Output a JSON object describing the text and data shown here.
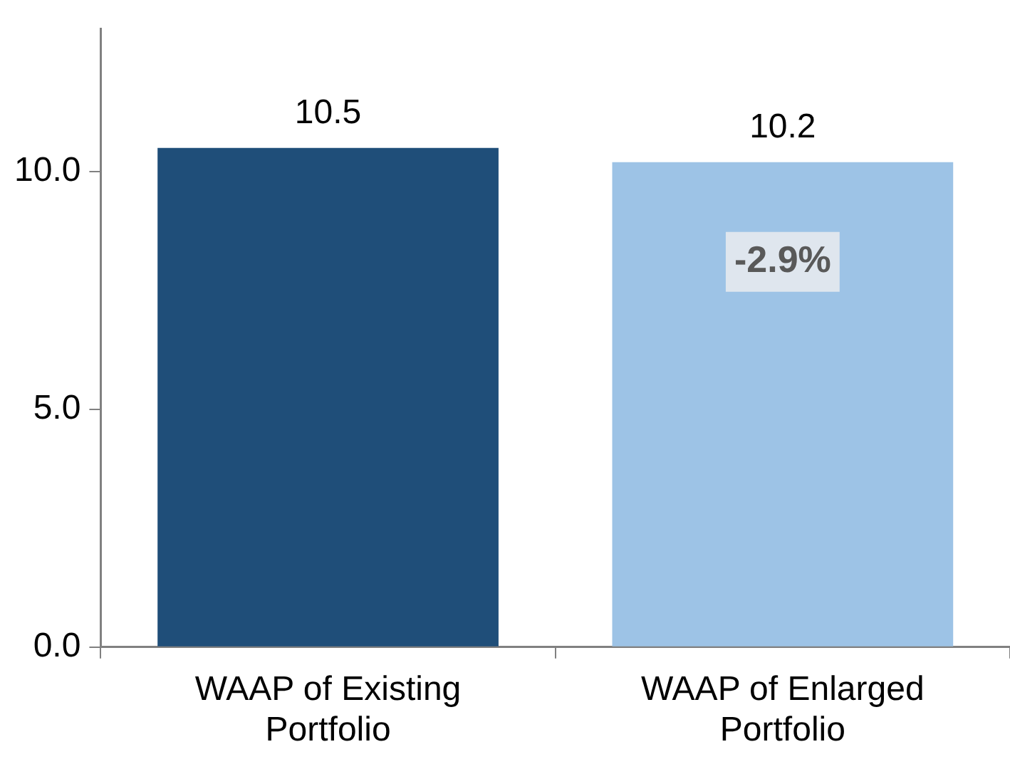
{
  "chart_data": {
    "type": "bar",
    "categories": [
      "WAAP of Existing Portfolio",
      "WAAP of Enlarged Portfolio"
    ],
    "values": [
      10.5,
      10.2
    ],
    "colors": [
      "#1f4e79",
      "#9dc3e6"
    ],
    "ylim": [
      0,
      13
    ],
    "yticks": [
      {
        "value": 0,
        "label": "0.0"
      },
      {
        "value": 5,
        "label": "5.0"
      },
      {
        "value": 10,
        "label": "10.0"
      }
    ],
    "data_labels": true,
    "annotations": [
      "-2.9%"
    ],
    "grid": false,
    "legend": false
  }
}
